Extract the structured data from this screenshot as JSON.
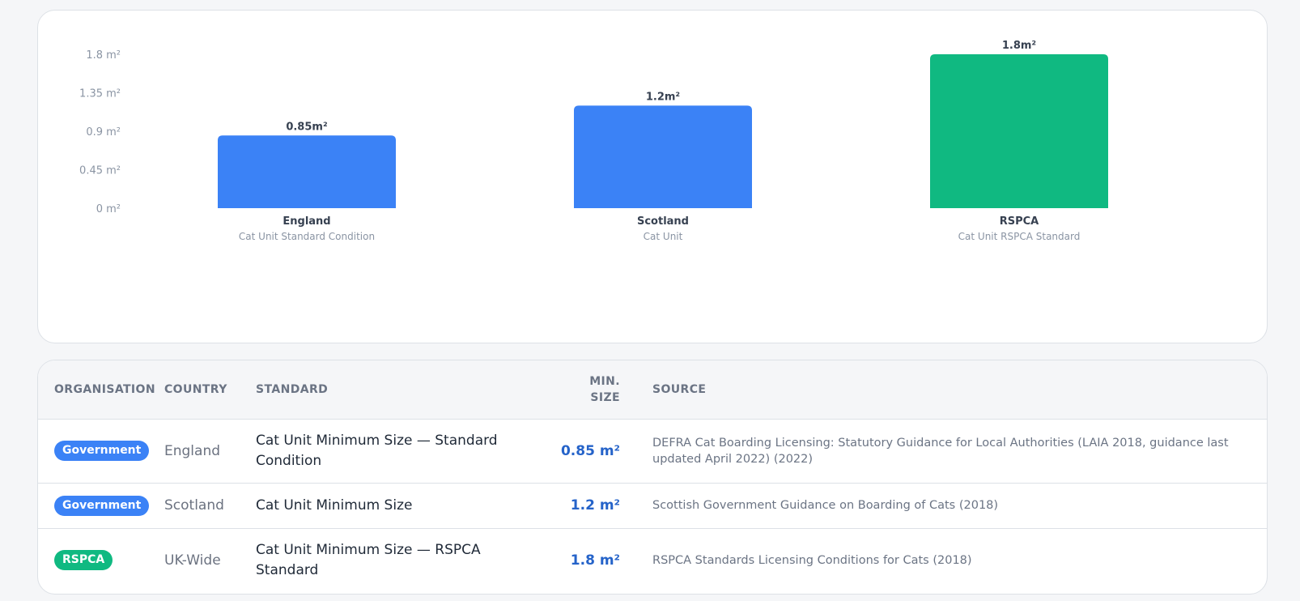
{
  "chart_data": {
    "type": "bar",
    "categories": [
      "England",
      "Scotland",
      "RSPCA"
    ],
    "subtitles": [
      "Cat Unit Standard Condition",
      "Cat Unit",
      "Cat Unit RSPCA Standard"
    ],
    "values": [
      0.85,
      1.2,
      1.8
    ],
    "value_labels": [
      "0.85m²",
      "1.2m²",
      "1.8m²"
    ],
    "bar_colors": [
      "#3b82f6",
      "#3b82f6",
      "#10b981"
    ],
    "y_ticks": [
      0,
      0.45,
      0.9,
      1.35,
      1.8
    ],
    "y_tick_labels": [
      "0 m²",
      "0.45 m²",
      "0.9 m²",
      "1.35 m²",
      "1.8 m²"
    ],
    "ylim": [
      0,
      1.8
    ],
    "grid": false,
    "title": "",
    "xlabel": "",
    "ylabel": ""
  },
  "table": {
    "headers": {
      "organisation": "ORGANISATION",
      "country": "COUNTRY",
      "standard": "STANDARD",
      "min_size_line1": "MIN.",
      "min_size_line2": "SIZE",
      "source": "SOURCE"
    },
    "rows": [
      {
        "org": "Government",
        "org_color": "#3b82f6",
        "country": "England",
        "standard": "Cat Unit Minimum Size — Standard Condition",
        "min_size": "0.85 m²",
        "source": "DEFRA Cat Boarding Licensing: Statutory Guidance for Local Authorities (LAIA 2018, guidance last updated April 2022) (2022)"
      },
      {
        "org": "Government",
        "org_color": "#3b82f6",
        "country": "Scotland",
        "standard": "Cat Unit Minimum Size",
        "min_size": "1.2 m²",
        "source": "Scottish Government Guidance on Boarding of Cats (2018)"
      },
      {
        "org": "RSPCA",
        "org_color": "#10b981",
        "country": "UK-Wide",
        "standard": "Cat Unit Minimum Size — RSPCA Standard",
        "min_size": "1.8 m²",
        "source": "RSPCA Standards Licensing Conditions for Cats (2018)"
      }
    ]
  }
}
